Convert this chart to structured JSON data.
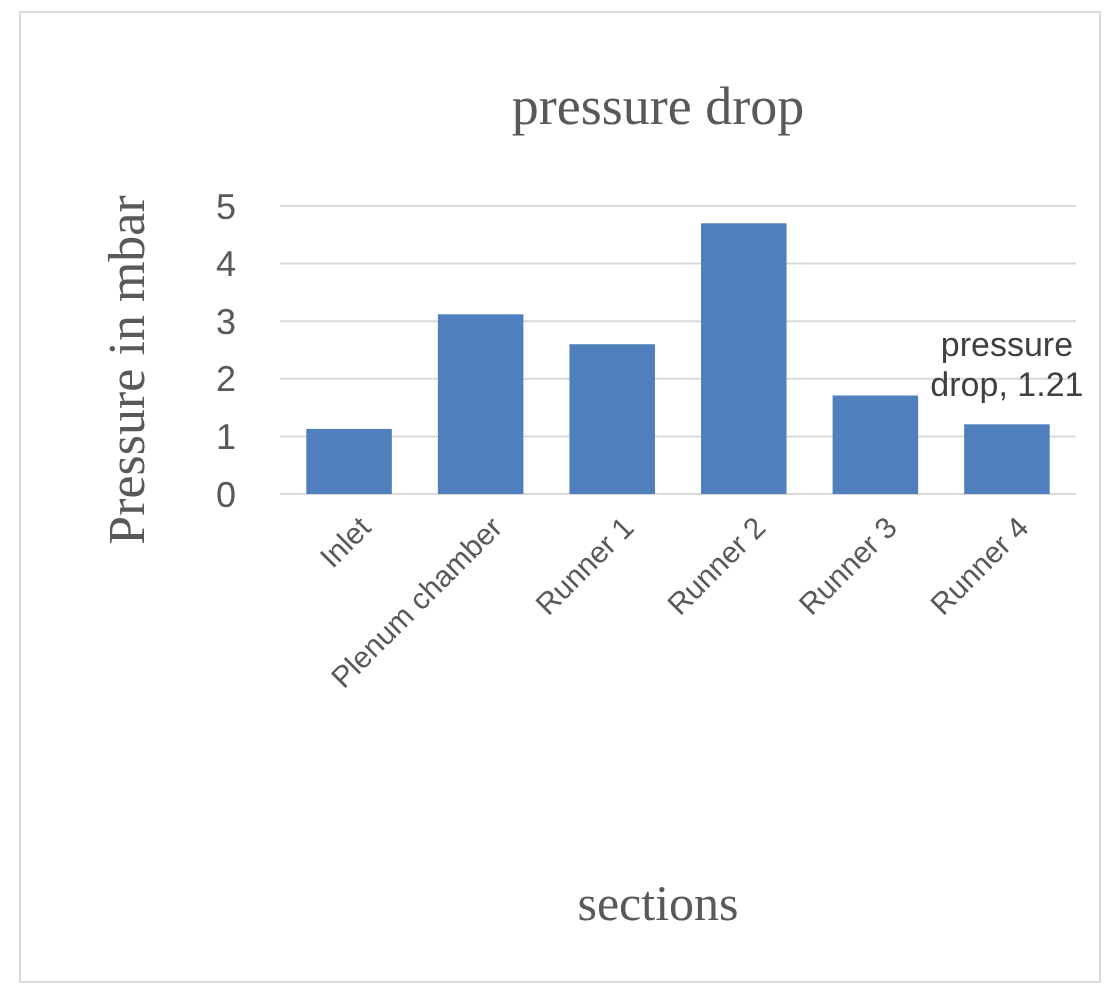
{
  "chart_data": {
    "type": "bar",
    "title": "pressure drop",
    "xlabel": "sections",
    "ylabel": "Pressure in mbar",
    "categories": [
      "Inlet",
      "Plenum chamber",
      "Runner 1",
      "Runner 2",
      "Runner 3",
      "Runner 4"
    ],
    "values": [
      1.13,
      3.12,
      2.6,
      4.7,
      1.71,
      1.21
    ],
    "value_labels": [
      null,
      null,
      null,
      null,
      null,
      "pressure drop, 1.21"
    ],
    "color": "#4f7fbd",
    "ylim": [
      0,
      5
    ],
    "yticks": [
      0,
      1,
      2,
      3,
      4,
      5
    ],
    "grid": true
  }
}
